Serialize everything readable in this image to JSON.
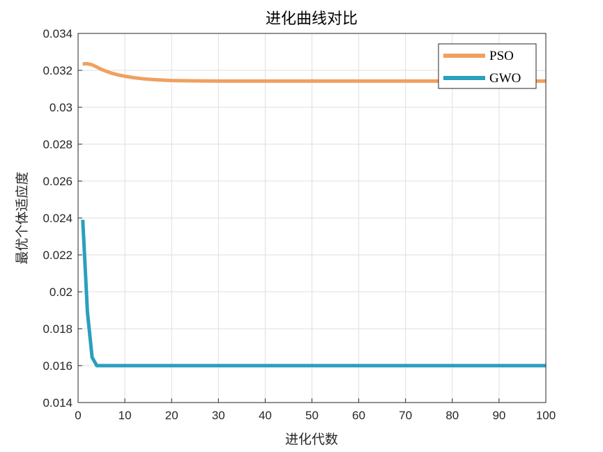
{
  "chart_data": {
    "type": "line",
    "title": "进化曲线对比",
    "xlabel": "进化代数",
    "ylabel": "最优个体适应度",
    "xlim": [
      0,
      100
    ],
    "ylim": [
      0.014,
      0.034
    ],
    "xticks": [
      0,
      10,
      20,
      30,
      40,
      50,
      60,
      70,
      80,
      90,
      100
    ],
    "yticks": [
      0.014,
      0.016,
      0.018,
      0.02,
      0.022,
      0.024,
      0.026,
      0.028,
      0.03,
      0.032,
      0.034
    ],
    "xtick_labels": [
      "0",
      "10",
      "20",
      "30",
      "40",
      "50",
      "60",
      "70",
      "80",
      "90",
      "100"
    ],
    "ytick_labels": [
      "0.014",
      "0.016",
      "0.018",
      "0.02",
      "0.022",
      "0.024",
      "0.026",
      "0.028",
      "0.03",
      "0.032",
      "0.034"
    ],
    "grid": true,
    "legend_position": "top-right",
    "series": [
      {
        "name": "PSO",
        "color": "#F0A060",
        "x": [
          1,
          2,
          3,
          4,
          5,
          6,
          7,
          8,
          9,
          10,
          12,
          14,
          16,
          18,
          20,
          25,
          30,
          40,
          50,
          60,
          70,
          80,
          90,
          100
        ],
        "y": [
          0.03235,
          0.03236,
          0.0323,
          0.03218,
          0.03205,
          0.03195,
          0.03186,
          0.03179,
          0.03173,
          0.03168,
          0.0316,
          0.03154,
          0.0315,
          0.03147,
          0.03145,
          0.03143,
          0.03142,
          0.03142,
          0.03142,
          0.03142,
          0.03142,
          0.03142,
          0.03142,
          0.03142
        ]
      },
      {
        "name": "GWO",
        "color": "#2A9FBE",
        "x": [
          1,
          2,
          3,
          4,
          5,
          10,
          20,
          30,
          40,
          50,
          60,
          70,
          80,
          90,
          100
        ],
        "y": [
          0.0239,
          0.0189,
          0.01645,
          0.016,
          0.016,
          0.016,
          0.016,
          0.016,
          0.016,
          0.016,
          0.016,
          0.016,
          0.016,
          0.016,
          0.016
        ]
      }
    ]
  }
}
